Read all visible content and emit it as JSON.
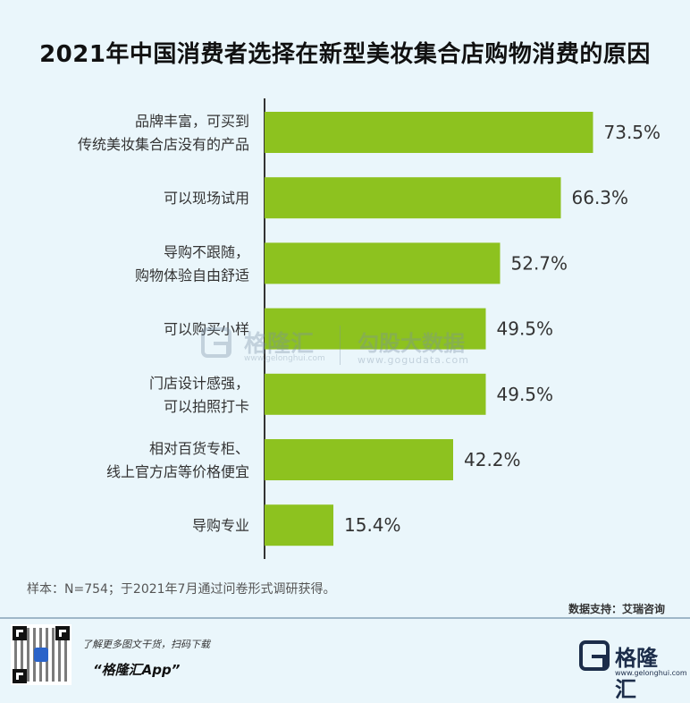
{
  "chart_data": {
    "type": "bar",
    "orientation": "horizontal",
    "title": "2021年中国消费者选择在新型美妆集合店购物消费的原因",
    "categories": [
      [
        "品牌丰富，可买到",
        "传统美妆集合店没有的产品"
      ],
      [
        "可以现场试用"
      ],
      [
        "导购不跟随，",
        "购物体验自由舒适"
      ],
      [
        "可以购买小样"
      ],
      [
        "门店设计感强，",
        "可以拍照打卡"
      ],
      [
        "相对百货专柜、",
        "线上官方店等价格便宜"
      ],
      [
        "导购专业"
      ]
    ],
    "values": [
      73.5,
      66.3,
      52.7,
      49.5,
      49.5,
      42.2,
      15.4
    ],
    "value_labels": [
      "73.5%",
      "66.3%",
      "52.7%",
      "49.5%",
      "49.5%",
      "42.2%",
      "15.4%"
    ],
    "xlim": [
      0,
      100
    ],
    "bar_color": "#8dc21f",
    "axis_color": "#333333",
    "grid": false,
    "legend": "none"
  },
  "watermark": {
    "name1": "格隆汇",
    "url1": "www.gelonghui.com",
    "name2": "勾股大数据",
    "url2": "www.gogudata.com"
  },
  "note": "样本：N=754；于2021年7月通过问卷形式调研获得。",
  "source": "数据支持：艾瑞咨询",
  "footer": {
    "promo_line": "了解更多图文干货，扫码下载",
    "app_name": "“格隆汇App”",
    "brand_name": "格隆汇",
    "brand_url": "www.gelonghui.com",
    "qr_icon": "qr-code-icon",
    "logo_icon": "gelonghui-logo-icon"
  }
}
